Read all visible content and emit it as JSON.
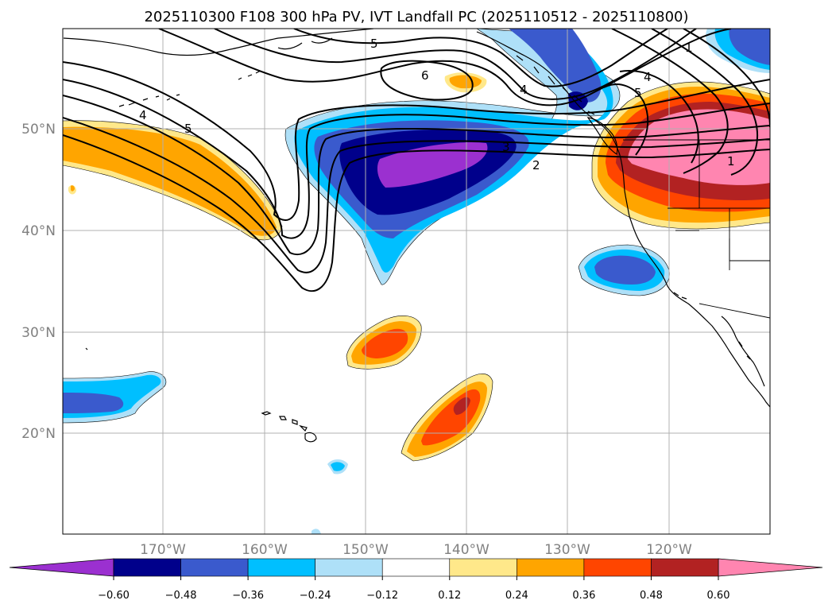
{
  "title": "2025110300 F108 300 hPa PV, IVT Landfall PC (2025110512 - 2025110800)",
  "lat_labels": [
    "50°N",
    "40°N",
    "30°N",
    "20°N"
  ],
  "lon_labels": [
    "170°W",
    "160°W",
    "150°W",
    "140°W",
    "130°W",
    "120°W"
  ],
  "colorbar": {
    "ticks": [
      "−0.60",
      "−0.48",
      "−0.36",
      "−0.24",
      "−0.12",
      "0.12",
      "0.24",
      "0.36",
      "0.48",
      "0.60"
    ],
    "colors": [
      "#9b30d0",
      "#00008b",
      "#3a5acd",
      "#00bfff",
      "#aee0f8",
      "#ffffff",
      "#ffe88a",
      "#ffa500",
      "#ff4500",
      "#b22222",
      "#ff85b0"
    ]
  },
  "colors": {
    "c_pink": "#ff85b0",
    "c_darkred": "#b22222",
    "c_redorange": "#ff4500",
    "c_orange": "#ffa500",
    "c_lightyellow": "#ffe88a",
    "c_lightblue": "#aee0f8",
    "c_cyan": "#00bfff",
    "c_royal": "#3a5acd",
    "c_navy": "#00008b",
    "c_purple": "#9b30d0"
  },
  "contour_labels": [
    "1",
    "1",
    "2",
    "3",
    "4",
    "4",
    "4",
    "5",
    "5",
    "5",
    "6"
  ]
}
